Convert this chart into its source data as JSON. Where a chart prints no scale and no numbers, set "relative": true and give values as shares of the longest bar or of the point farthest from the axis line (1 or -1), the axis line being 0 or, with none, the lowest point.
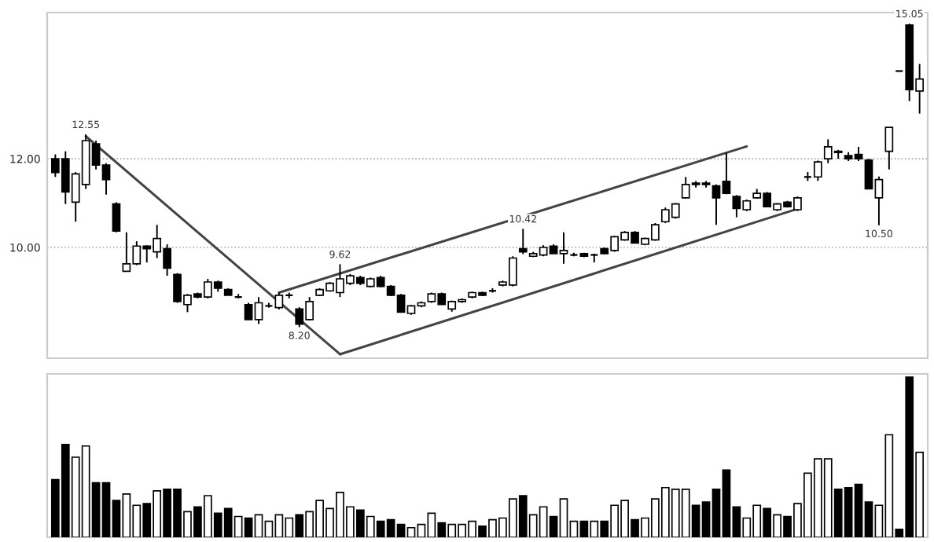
{
  "chart_data": [
    {
      "type": "candlestick",
      "categories": [
        null,
        null,
        null,
        null,
        null,
        null,
        null,
        null,
        null,
        null,
        null,
        null,
        null,
        null,
        null,
        null,
        null,
        null,
        null,
        null,
        null,
        null,
        null,
        null,
        null,
        null,
        null,
        null,
        null,
        null,
        null,
        null,
        null,
        null,
        null,
        null,
        null,
        null,
        null,
        null,
        null,
        null,
        null,
        null,
        null,
        null,
        null,
        null,
        null,
        null,
        null,
        null,
        null,
        null,
        null,
        null,
        null,
        null,
        null,
        null,
        null,
        null,
        null,
        null,
        null,
        null,
        null,
        null,
        null,
        null,
        null,
        null,
        null,
        null,
        null,
        null,
        null,
        null,
        null,
        null,
        null,
        null,
        null,
        null,
        null,
        null
      ],
      "ohlc": [
        [
          12.0,
          12.1,
          11.59,
          11.69
        ],
        [
          12.0,
          12.17,
          10.98,
          11.25
        ],
        [
          11.02,
          11.7,
          10.58,
          11.66
        ],
        [
          11.42,
          12.55,
          11.32,
          12.41
        ],
        [
          12.34,
          12.41,
          11.76,
          11.86
        ],
        [
          11.86,
          11.9,
          11.19,
          11.53
        ],
        [
          10.98,
          11.02,
          10.34,
          10.37
        ],
        [
          9.46,
          10.34,
          9.46,
          9.63
        ],
        [
          9.63,
          10.14,
          9.6,
          10.03
        ],
        [
          10.03,
          10.05,
          9.66,
          9.97
        ],
        [
          9.9,
          10.51,
          9.76,
          10.2
        ],
        [
          9.97,
          10.07,
          9.36,
          9.53
        ],
        [
          9.39,
          9.42,
          8.75,
          8.78
        ],
        [
          8.71,
          8.95,
          8.54,
          8.92
        ],
        [
          8.95,
          8.98,
          8.85,
          8.88
        ],
        [
          8.88,
          9.29,
          8.85,
          9.22
        ],
        [
          9.22,
          9.25,
          9.0,
          9.08
        ],
        [
          9.05,
          9.08,
          8.92,
          8.92
        ],
        [
          8.88,
          8.95,
          8.85,
          8.88
        ],
        [
          8.71,
          8.75,
          8.37,
          8.37
        ],
        [
          8.37,
          8.88,
          8.27,
          8.75
        ],
        [
          8.68,
          8.75,
          8.64,
          8.68
        ],
        [
          8.64,
          8.98,
          8.6,
          8.92
        ],
        [
          8.92,
          8.98,
          8.85,
          8.92
        ],
        [
          8.61,
          8.65,
          8.2,
          8.27
        ],
        [
          8.37,
          8.88,
          8.35,
          8.78
        ],
        [
          8.92,
          9.08,
          8.9,
          9.05
        ],
        [
          9.02,
          9.22,
          9.0,
          9.19
        ],
        [
          8.98,
          9.62,
          8.88,
          9.29
        ],
        [
          9.19,
          9.4,
          9.15,
          9.36
        ],
        [
          9.32,
          9.36,
          9.15,
          9.19
        ],
        [
          9.12,
          9.32,
          9.1,
          9.29
        ],
        [
          9.32,
          9.36,
          9.1,
          9.12
        ],
        [
          9.12,
          9.15,
          8.9,
          8.92
        ],
        [
          8.92,
          8.95,
          8.54,
          8.54
        ],
        [
          8.51,
          8.7,
          8.48,
          8.68
        ],
        [
          8.68,
          8.78,
          8.65,
          8.75
        ],
        [
          8.78,
          8.98,
          8.75,
          8.95
        ],
        [
          8.95,
          8.98,
          8.71,
          8.71
        ],
        [
          8.61,
          8.8,
          8.55,
          8.78
        ],
        [
          8.78,
          8.85,
          8.75,
          8.82
        ],
        [
          8.88,
          9.0,
          8.85,
          8.98
        ],
        [
          8.98,
          9.0,
          8.9,
          8.92
        ],
        [
          9.02,
          9.08,
          8.98,
          9.02
        ],
        [
          9.15,
          9.25,
          9.12,
          9.22
        ],
        [
          9.15,
          9.8,
          9.12,
          9.76
        ],
        [
          9.97,
          10.42,
          9.85,
          9.9
        ],
        [
          9.8,
          9.9,
          9.78,
          9.86
        ],
        [
          9.83,
          10.05,
          9.8,
          10.0
        ],
        [
          10.03,
          10.07,
          9.86,
          9.86
        ],
        [
          9.86,
          10.34,
          9.63,
          9.93
        ],
        [
          9.83,
          9.88,
          9.8,
          9.83
        ],
        [
          9.86,
          9.88,
          9.78,
          9.8
        ],
        [
          9.83,
          9.86,
          9.66,
          9.83
        ],
        [
          9.97,
          10.0,
          9.85,
          9.86
        ],
        [
          9.93,
          10.26,
          9.9,
          10.24
        ],
        [
          10.17,
          10.37,
          10.15,
          10.34
        ],
        [
          10.34,
          10.37,
          10.1,
          10.1
        ],
        [
          10.07,
          10.22,
          10.05,
          10.2
        ],
        [
          10.17,
          10.55,
          10.15,
          10.51
        ],
        [
          10.58,
          10.9,
          10.55,
          10.85
        ],
        [
          10.68,
          11.0,
          10.65,
          10.98
        ],
        [
          11.12,
          11.59,
          11.1,
          11.42
        ],
        [
          11.45,
          11.5,
          11.35,
          11.42
        ],
        [
          11.45,
          11.5,
          11.35,
          11.42
        ],
        [
          11.39,
          11.42,
          10.51,
          11.12
        ],
        [
          11.49,
          12.14,
          11.2,
          11.22
        ],
        [
          11.15,
          11.18,
          10.68,
          10.88
        ],
        [
          10.85,
          11.08,
          10.82,
          11.05
        ],
        [
          11.12,
          11.32,
          11.1,
          11.22
        ],
        [
          11.22,
          11.25,
          10.92,
          10.92
        ],
        [
          10.85,
          11.0,
          10.82,
          10.98
        ],
        [
          11.02,
          11.05,
          10.9,
          10.92
        ],
        [
          10.85,
          11.15,
          10.82,
          11.12
        ],
        [
          11.59,
          11.7,
          11.5,
          11.59
        ],
        [
          11.59,
          11.96,
          11.5,
          11.93
        ],
        [
          12.0,
          12.44,
          11.9,
          12.27
        ],
        [
          12.17,
          12.2,
          12.0,
          12.14
        ],
        [
          12.07,
          12.15,
          11.95,
          12.0
        ],
        [
          12.1,
          12.27,
          11.95,
          12.0
        ],
        [
          11.97,
          12.0,
          11.32,
          11.32
        ],
        [
          11.12,
          11.6,
          10.5,
          11.53
        ],
        [
          12.17,
          12.71,
          11.76,
          12.71
        ],
        [
          13.98,
          13.98,
          13.98,
          13.98
        ],
        [
          15.02,
          15.05,
          13.3,
          13.56
        ],
        [
          13.53,
          14.14,
          13.02,
          13.8
        ]
      ],
      "series": [
        {
          "type": "line",
          "color": "#444444",
          "values": [
            null,
            null,
            null,
            12.51,
            null,
            null,
            null,
            null,
            null,
            null,
            null,
            null,
            null,
            null,
            null,
            null,
            null,
            null,
            null,
            null,
            null,
            null,
            null,
            null,
            null,
            null,
            null,
            null,
            7.59,
            null,
            null,
            null,
            null,
            null,
            null,
            null,
            null,
            null,
            null,
            null,
            null,
            null,
            null,
            null,
            null,
            null,
            null,
            null,
            null,
            null,
            null,
            null,
            null,
            null,
            null,
            null,
            null,
            null,
            null,
            null,
            null,
            null,
            null,
            null,
            null,
            null,
            null,
            null,
            null,
            null,
            null,
            null,
            null,
            null,
            null,
            null,
            null,
            null,
            null,
            null,
            null,
            null,
            null,
            null,
            null,
            null
          ]
        },
        {
          "type": "line",
          "color": "#444444",
          "values": [
            null,
            null,
            null,
            null,
            null,
            null,
            null,
            null,
            null,
            null,
            null,
            null,
            null,
            null,
            null,
            null,
            null,
            null,
            null,
            null,
            null,
            null,
            8.98,
            null,
            null,
            null,
            null,
            null,
            null,
            null,
            null,
            null,
            null,
            null,
            null,
            null,
            null,
            null,
            null,
            null,
            null,
            null,
            null,
            null,
            null,
            null,
            null,
            null,
            null,
            null,
            null,
            null,
            null,
            null,
            null,
            null,
            null,
            null,
            null,
            null,
            null,
            null,
            null,
            null,
            null,
            null,
            null,
            null,
            12.28,
            null,
            null,
            null,
            null,
            null,
            null,
            null,
            null,
            null,
            null,
            null,
            null,
            null,
            null,
            null,
            null,
            null
          ]
        },
        {
          "type": "line",
          "color": "#444444",
          "values": [
            null,
            null,
            null,
            null,
            null,
            null,
            null,
            null,
            null,
            null,
            null,
            null,
            null,
            null,
            null,
            null,
            null,
            null,
            null,
            null,
            null,
            null,
            null,
            null,
            null,
            null,
            null,
            null,
            7.59,
            null,
            null,
            null,
            null,
            null,
            null,
            null,
            null,
            null,
            null,
            null,
            null,
            null,
            null,
            null,
            null,
            null,
            null,
            null,
            null,
            null,
            null,
            null,
            null,
            null,
            null,
            null,
            null,
            null,
            null,
            null,
            null,
            null,
            null,
            null,
            null,
            null,
            null,
            null,
            null,
            null,
            null,
            null,
            null,
            10.87,
            null,
            null,
            null,
            null,
            null,
            null,
            null,
            null,
            null,
            null,
            null,
            null
          ]
        }
      ],
      "ylim": [
        7.5,
        15.3
      ],
      "yticks": [
        {
          "value": 10,
          "label": "10.00"
        },
        {
          "value": 12,
          "label": "12.00"
        }
      ],
      "grid": "y",
      "tick_labels": "y",
      "annotations": [
        {
          "text": "12.55",
          "y": 12.55
        },
        {
          "text": "8.20",
          "y": 8.2
        },
        {
          "text": "9.62",
          "y": 9.62
        },
        {
          "text": "10.42",
          "y": 10.42
        },
        {
          "text": "10.50",
          "y": 10.5
        },
        {
          "text": "15.05",
          "y": 15.05
        }
      ]
    },
    {
      "type": "bar",
      "relative": true,
      "categories": [
        null,
        null,
        null,
        null,
        null,
        null,
        null,
        null,
        null,
        null,
        null,
        null,
        null,
        null,
        null,
        null,
        null,
        null,
        null,
        null,
        null,
        null,
        null,
        null,
        null,
        null,
        null,
        null,
        null,
        null,
        null,
        null,
        null,
        null,
        null,
        null,
        null,
        null,
        null,
        null,
        null,
        null,
        null,
        null,
        null,
        null,
        null,
        null,
        null,
        null,
        null,
        null,
        null,
        null,
        null,
        null,
        null,
        null,
        null,
        null,
        null,
        null,
        null,
        null,
        null,
        null,
        null,
        null,
        null,
        null,
        null,
        null,
        null,
        null,
        null,
        null,
        null,
        null,
        null,
        null,
        null,
        null,
        null,
        null,
        null,
        null
      ],
      "series": [
        {
          "values": [
            0.36,
            0.58,
            0.5,
            0.57,
            0.34,
            0.34,
            0.23,
            0.27,
            0.2,
            0.21,
            0.29,
            0.3,
            0.3,
            0.16,
            0.19,
            0.26,
            0.15,
            0.18,
            0.13,
            0.12,
            0.14,
            0.1,
            0.14,
            0.12,
            0.14,
            0.16,
            0.23,
            0.18,
            0.28,
            0.19,
            0.17,
            0.13,
            0.1,
            0.11,
            0.08,
            0.06,
            0.08,
            0.15,
            0.09,
            0.08,
            0.08,
            0.1,
            0.07,
            0.11,
            0.12,
            0.24,
            0.26,
            0.14,
            0.19,
            0.13,
            0.24,
            0.1,
            0.1,
            0.1,
            0.1,
            0.2,
            0.23,
            0.11,
            0.12,
            0.24,
            0.31,
            0.3,
            0.3,
            0.2,
            0.22,
            0.3,
            0.42,
            0.19,
            0.12,
            0.2,
            0.18,
            0.14,
            0.13,
            0.21,
            0.4,
            0.49,
            0.49,
            0.3,
            0.31,
            0.33,
            0.22,
            0.2,
            0.64,
            0.05,
            1,
            0.53
          ],
          "colors": [
            "#000000",
            "#000000",
            "#ffffff",
            "#ffffff",
            "#000000",
            "#000000",
            "#000000",
            "#ffffff",
            "#ffffff",
            "#000000",
            "#ffffff",
            "#000000",
            "#000000",
            "#ffffff",
            "#000000",
            "#ffffff",
            "#000000",
            "#000000",
            "#ffffff",
            "#000000",
            "#ffffff",
            "#ffffff",
            "#ffffff",
            "#ffffff",
            "#000000",
            "#ffffff",
            "#ffffff",
            "#ffffff",
            "#ffffff",
            "#ffffff",
            "#000000",
            "#ffffff",
            "#000000",
            "#000000",
            "#000000",
            "#ffffff",
            "#ffffff",
            "#ffffff",
            "#000000",
            "#ffffff",
            "#ffffff",
            "#ffffff",
            "#000000",
            "#ffffff",
            "#ffffff",
            "#ffffff",
            "#000000",
            "#ffffff",
            "#ffffff",
            "#000000",
            "#ffffff",
            "#ffffff",
            "#000000",
            "#ffffff",
            "#000000",
            "#ffffff",
            "#ffffff",
            "#000000",
            "#ffffff",
            "#ffffff",
            "#ffffff",
            "#ffffff",
            "#ffffff",
            "#000000",
            "#000000",
            "#000000",
            "#000000",
            "#000000",
            "#ffffff",
            "#ffffff",
            "#000000",
            "#ffffff",
            "#000000",
            "#ffffff",
            "#ffffff",
            "#ffffff",
            "#ffffff",
            "#000000",
            "#000000",
            "#000000",
            "#000000",
            "#ffffff",
            "#ffffff",
            "#000000",
            "#000000",
            "#ffffff"
          ]
        }
      ],
      "tick_labels": false
    }
  ]
}
